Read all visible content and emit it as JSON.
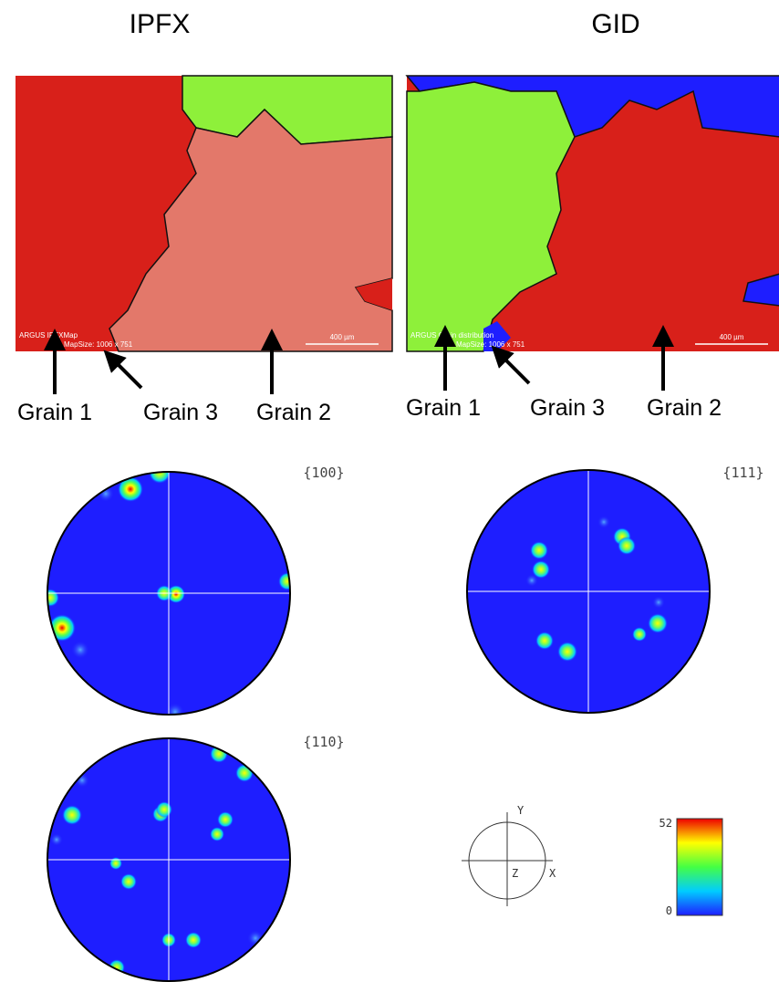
{
  "panels": [
    {
      "title": "IPFX",
      "map_caption": "ARGUS IPFXMap",
      "map_size": "MapSize: 1006 x 751",
      "scale_bar": "400 µm",
      "grains": [
        "Grain 1",
        "Grain 3",
        "Grain 2"
      ]
    },
    {
      "title": "GID",
      "map_caption": "ARGUS Grain distribution",
      "map_size": "MapSize: 1006 x 751",
      "scale_bar": "400 µm",
      "grains": [
        "Grain 1",
        "Grain 3",
        "Grain 2"
      ]
    }
  ],
  "pole_figures": [
    {
      "label": "{100}"
    },
    {
      "label": "{111}"
    },
    {
      "label": "{110}"
    }
  ],
  "reference_axes": {
    "y": "Y",
    "z": "Z",
    "x": "X"
  },
  "colorbar": {
    "max": 52,
    "min": 0
  }
}
